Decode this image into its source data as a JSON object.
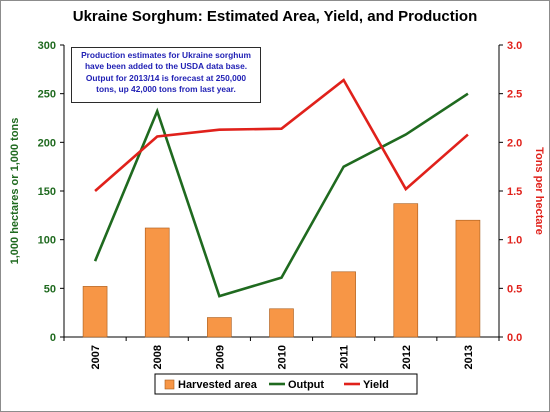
{
  "chart_data": {
    "type": "bar",
    "title": "Ukraine Sorghum:  Estimated Area, Yield, and Production",
    "categories": [
      "2007",
      "2008",
      "2009",
      "2010",
      "2011",
      "2012",
      "2013"
    ],
    "series": [
      {
        "name": "Harvested area",
        "type": "bar",
        "axis": "left",
        "color": "#f79646",
        "values": [
          52,
          112,
          20,
          29,
          67,
          137,
          120
        ]
      },
      {
        "name": "Output",
        "type": "line",
        "axis": "left",
        "color": "#1f6a1f",
        "values": [
          78,
          232,
          42,
          61,
          175,
          208,
          250
        ]
      },
      {
        "name": "Yield",
        "type": "line",
        "axis": "right",
        "color": "#e0211b",
        "values": [
          1.5,
          2.06,
          2.13,
          2.14,
          2.64,
          1.52,
          2.08
        ]
      }
    ],
    "ylabel": "1,000 hectares or 1,000 tons",
    "y2label": "Tons per hectare",
    "ylim": [
      0,
      300
    ],
    "y2lim": [
      0,
      3.0
    ],
    "yticks": [
      "0",
      "50",
      "100",
      "150",
      "200",
      "250",
      "300"
    ],
    "y2ticks": [
      "0.0",
      "0.5",
      "1.0",
      "1.5",
      "2.0",
      "2.5",
      "3.0"
    ],
    "ylabel_color": "#1f6a1f",
    "y2label_color": "#e0211b",
    "grid": false,
    "legend_position": "bottom",
    "annotation": [
      "Production estimates for Ukraine sorghum",
      "have been added to the USDA data base.",
      "Output for 2013/14 is forecast at 250,000",
      "tons, up 42,000 tons from last year."
    ]
  }
}
